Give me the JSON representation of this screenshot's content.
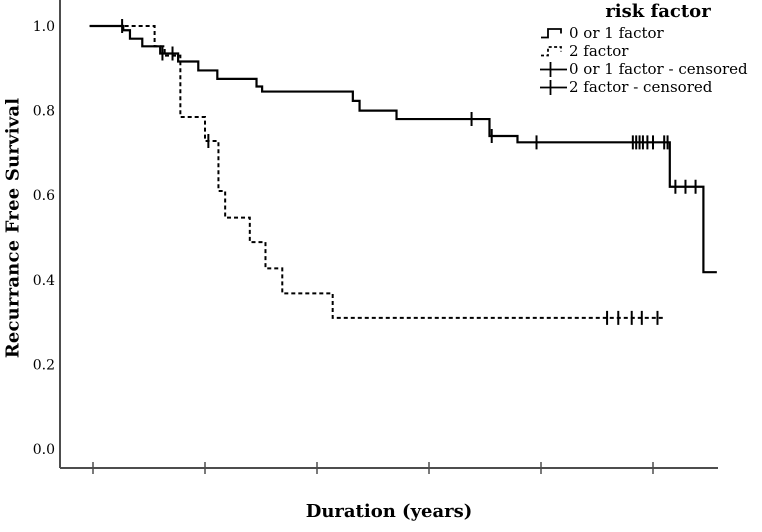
{
  "chart_data": {
    "type": "line",
    "subtype": "kaplan-meier-step-survival",
    "title": "",
    "xlabel": "Duration (years)",
    "ylabel": "Recurrance Free Survival",
    "x_axis": {
      "tick_units": [
        0,
        1,
        2,
        3,
        4,
        5
      ],
      "tick_labels": [
        "",
        "",
        "",
        "",
        "",
        ""
      ]
    },
    "y_axis": {
      "ticks": [
        1.0,
        0.8,
        0.6,
        0.4,
        0.2,
        0.0
      ],
      "range": [
        0.0,
        1.05
      ]
    },
    "legend": {
      "title": "risk factor",
      "entries": [
        {
          "label": "0 or 1 factor",
          "icon": "solid-step-icon"
        },
        {
          "label": "2 factor",
          "icon": "dashed-step-icon"
        },
        {
          "label": "0 or 1 factor - censored",
          "icon": "censored-plus-icon"
        },
        {
          "label": "2 factor - censored",
          "icon": "censored-plus-icon"
        }
      ]
    },
    "series": [
      {
        "name": "0 or 1 factor",
        "line_style": "solid",
        "color": "#000000",
        "steps": [
          [
            -0.03,
            1.0
          ],
          [
            0.27,
            0.99
          ],
          [
            0.33,
            0.97
          ],
          [
            0.44,
            0.952
          ],
          [
            0.6,
            0.935
          ],
          [
            0.76,
            0.916
          ],
          [
            0.94,
            0.895
          ],
          [
            1.11,
            0.875
          ],
          [
            1.46,
            0.857
          ],
          [
            1.51,
            0.845
          ],
          [
            2.32,
            0.823
          ],
          [
            2.38,
            0.8
          ],
          [
            2.71,
            0.78
          ],
          [
            3.54,
            0.74
          ],
          [
            3.79,
            0.725
          ],
          [
            5.15,
            0.62
          ],
          [
            5.45,
            0.418
          ]
        ],
        "x_end": 5.57,
        "censored": [
          [
            0.26,
            1.0
          ],
          [
            0.62,
            0.935
          ],
          [
            0.71,
            0.935
          ],
          [
            3.38,
            0.78
          ],
          [
            3.56,
            0.74
          ],
          [
            3.96,
            0.725
          ],
          [
            4.82,
            0.725
          ],
          [
            4.85,
            0.725
          ],
          [
            4.88,
            0.725
          ],
          [
            4.91,
            0.725
          ],
          [
            4.95,
            0.725
          ],
          [
            5.0,
            0.725
          ],
          [
            5.1,
            0.725
          ],
          [
            5.13,
            0.725
          ],
          [
            5.2,
            0.62
          ],
          [
            5.29,
            0.62
          ],
          [
            5.38,
            0.62
          ]
        ]
      },
      {
        "name": "2 factor",
        "line_style": "dashed",
        "color": "#000000",
        "steps": [
          [
            -0.03,
            1.0
          ],
          [
            0.55,
            0.952
          ],
          [
            0.64,
            0.93
          ],
          [
            0.78,
            0.785
          ],
          [
            1.0,
            0.728
          ],
          [
            1.12,
            0.61
          ],
          [
            1.18,
            0.547
          ],
          [
            1.4,
            0.489
          ],
          [
            1.54,
            0.427
          ],
          [
            1.69,
            0.368
          ],
          [
            2.14,
            0.31
          ]
        ],
        "x_end": 5.09,
        "censored": [
          [
            1.03,
            0.728
          ],
          [
            4.59,
            0.31
          ],
          [
            4.69,
            0.31
          ],
          [
            4.81,
            0.31
          ],
          [
            4.9,
            0.31
          ],
          [
            5.04,
            0.31
          ]
        ]
      }
    ],
    "colors": {
      "line": "#000000",
      "axis": "#4d4d4d",
      "text": "#000000",
      "background": "#ffffff"
    }
  }
}
